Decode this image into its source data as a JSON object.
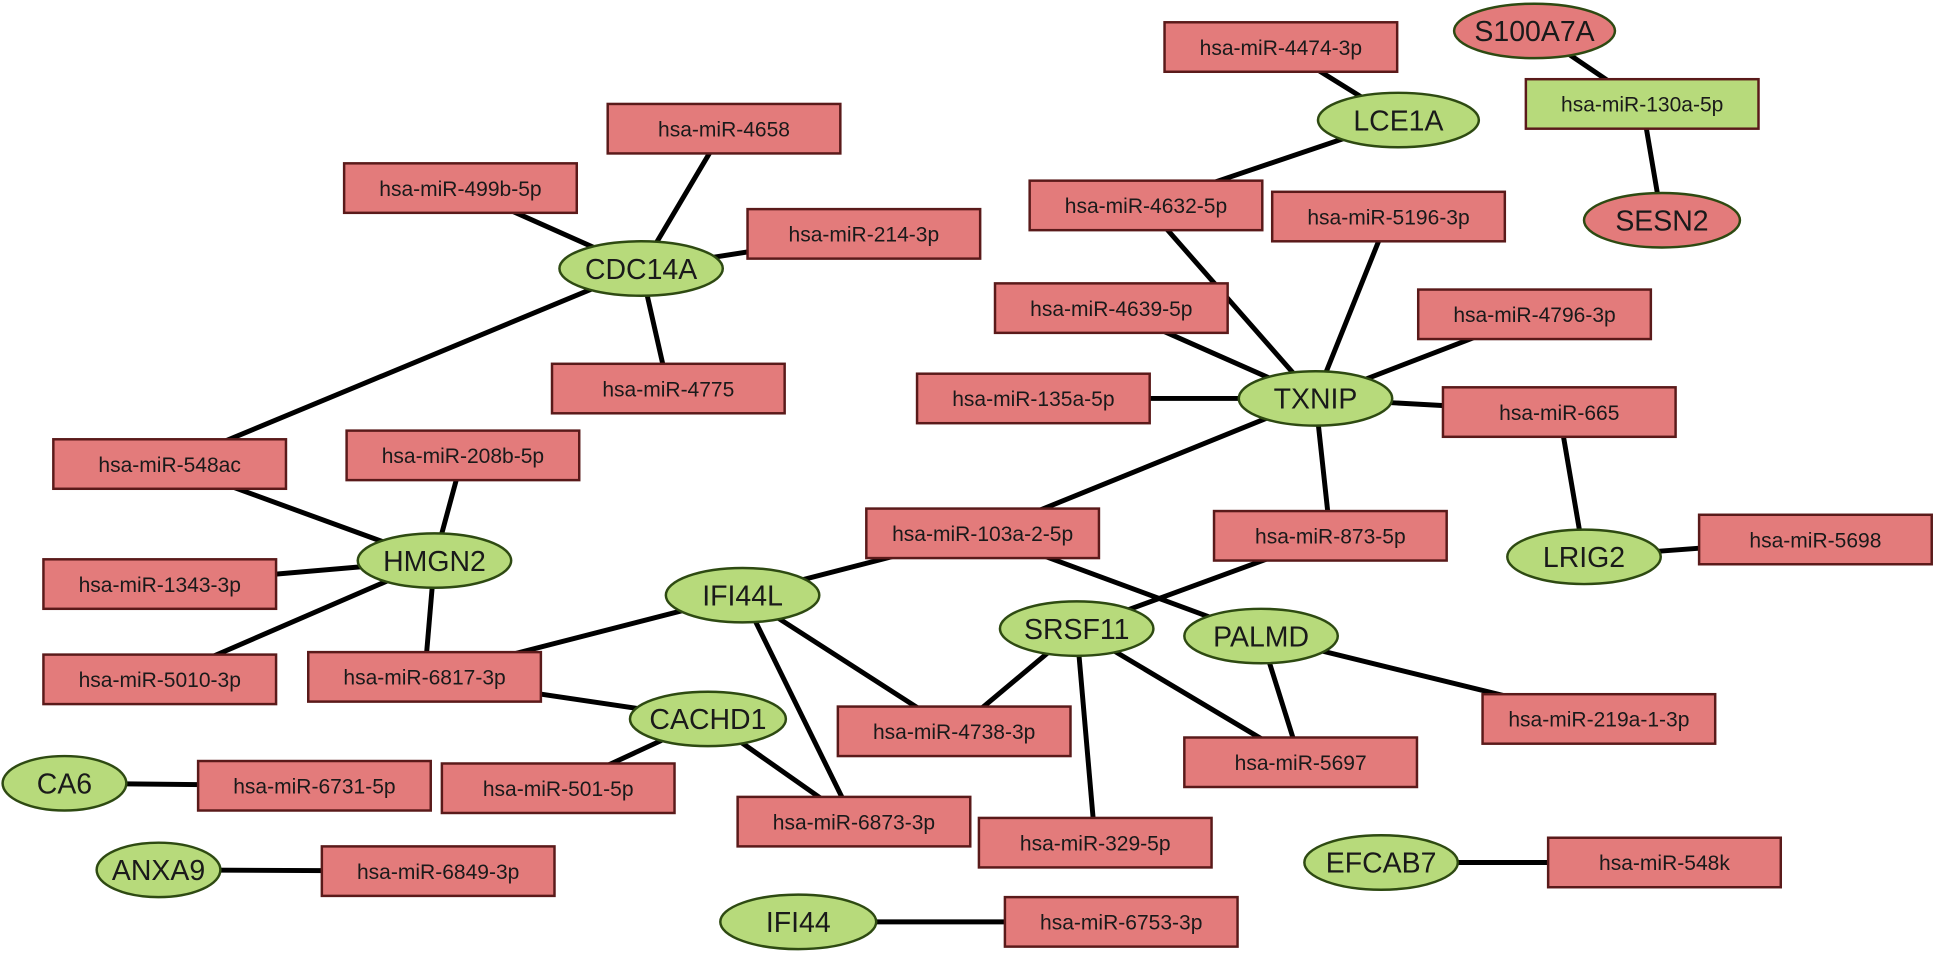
{
  "colors": {
    "mirna_fill": "#e37b7b",
    "gene_fill": "#b7da7b",
    "edge": "#000000"
  },
  "nodes": [
    {
      "id": "m4474",
      "label": "hsa-miR-4474-3p",
      "shape": "rect",
      "color": "red"
    },
    {
      "id": "S100A7A",
      "label": "S100A7A",
      "shape": "ellipse",
      "color": "red"
    },
    {
      "id": "m130a",
      "label": "hsa-miR-130a-5p",
      "shape": "rect",
      "color": "green"
    },
    {
      "id": "SESN2",
      "label": "SESN2",
      "shape": "ellipse",
      "color": "red"
    },
    {
      "id": "LCE1A",
      "label": "LCE1A",
      "shape": "ellipse",
      "color": "green"
    },
    {
      "id": "m4658",
      "label": "hsa-miR-4658",
      "shape": "rect",
      "color": "red"
    },
    {
      "id": "m499b",
      "label": "hsa-miR-499b-5p",
      "shape": "rect",
      "color": "red"
    },
    {
      "id": "m214",
      "label": "hsa-miR-214-3p",
      "shape": "rect",
      "color": "red"
    },
    {
      "id": "CDC14A",
      "label": "CDC14A",
      "shape": "ellipse",
      "color": "green"
    },
    {
      "id": "m4775",
      "label": "hsa-miR-4775",
      "shape": "rect",
      "color": "red"
    },
    {
      "id": "m4632",
      "label": "hsa-miR-4632-5p",
      "shape": "rect",
      "color": "red"
    },
    {
      "id": "m5196",
      "label": "hsa-miR-5196-3p",
      "shape": "rect",
      "color": "red"
    },
    {
      "id": "m4639",
      "label": "hsa-miR-4639-5p",
      "shape": "rect",
      "color": "red"
    },
    {
      "id": "m4796",
      "label": "hsa-miR-4796-3p",
      "shape": "rect",
      "color": "red"
    },
    {
      "id": "m135a",
      "label": "hsa-miR-135a-5p",
      "shape": "rect",
      "color": "red"
    },
    {
      "id": "TXNIP",
      "label": "TXNIP",
      "shape": "ellipse",
      "color": "green"
    },
    {
      "id": "m665",
      "label": "hsa-miR-665",
      "shape": "rect",
      "color": "red"
    },
    {
      "id": "m548ac",
      "label": "hsa-miR-548ac",
      "shape": "rect",
      "color": "red"
    },
    {
      "id": "m208b",
      "label": "hsa-miR-208b-5p",
      "shape": "rect",
      "color": "red"
    },
    {
      "id": "HMGN2",
      "label": "HMGN2",
      "shape": "ellipse",
      "color": "green"
    },
    {
      "id": "m1343",
      "label": "hsa-miR-1343-3p",
      "shape": "rect",
      "color": "red"
    },
    {
      "id": "m103a",
      "label": "hsa-miR-103a-2-5p",
      "shape": "rect",
      "color": "red"
    },
    {
      "id": "m873",
      "label": "hsa-miR-873-5p",
      "shape": "rect",
      "color": "red"
    },
    {
      "id": "LRIG2",
      "label": "LRIG2",
      "shape": "ellipse",
      "color": "green"
    },
    {
      "id": "m5698",
      "label": "hsa-miR-5698",
      "shape": "rect",
      "color": "red"
    },
    {
      "id": "IFI44L",
      "label": "IFI44L",
      "shape": "ellipse",
      "color": "green"
    },
    {
      "id": "SRSF11",
      "label": "SRSF11",
      "shape": "ellipse",
      "color": "green"
    },
    {
      "id": "PALMD",
      "label": "PALMD",
      "shape": "ellipse",
      "color": "green"
    },
    {
      "id": "m5010",
      "label": "hsa-miR-5010-3p",
      "shape": "rect",
      "color": "red"
    },
    {
      "id": "m6817",
      "label": "hsa-miR-6817-3p",
      "shape": "rect",
      "color": "red"
    },
    {
      "id": "CACHD1",
      "label": "CACHD1",
      "shape": "ellipse",
      "color": "green"
    },
    {
      "id": "m4738",
      "label": "hsa-miR-4738-3p",
      "shape": "rect",
      "color": "red"
    },
    {
      "id": "m219a",
      "label": "hsa-miR-219a-1-3p",
      "shape": "rect",
      "color": "red"
    },
    {
      "id": "m5697",
      "label": "hsa-miR-5697",
      "shape": "rect",
      "color": "red"
    },
    {
      "id": "CA6",
      "label": "CA6",
      "shape": "ellipse",
      "color": "green"
    },
    {
      "id": "m6731",
      "label": "hsa-miR-6731-5p",
      "shape": "rect",
      "color": "red"
    },
    {
      "id": "m501",
      "label": "hsa-miR-501-5p",
      "shape": "rect",
      "color": "red"
    },
    {
      "id": "m6873",
      "label": "hsa-miR-6873-3p",
      "shape": "rect",
      "color": "red"
    },
    {
      "id": "m329",
      "label": "hsa-miR-329-5p",
      "shape": "rect",
      "color": "red"
    },
    {
      "id": "EFCAB7",
      "label": "EFCAB7",
      "shape": "ellipse",
      "color": "green"
    },
    {
      "id": "m548k",
      "label": "hsa-miR-548k",
      "shape": "rect",
      "color": "red"
    },
    {
      "id": "ANXA9",
      "label": "ANXA9",
      "shape": "ellipse",
      "color": "green"
    },
    {
      "id": "m6849",
      "label": "hsa-miR-6849-3p",
      "shape": "rect",
      "color": "red"
    },
    {
      "id": "IFI44",
      "label": "IFI44",
      "shape": "ellipse",
      "color": "green"
    },
    {
      "id": "m6753",
      "label": "hsa-miR-6753-3p",
      "shape": "rect",
      "color": "red"
    }
  ],
  "edges": [
    [
      "m4474",
      "LCE1A"
    ],
    [
      "LCE1A",
      "m4632"
    ],
    [
      "S100A7A",
      "m130a"
    ],
    [
      "m130a",
      "SESN2"
    ],
    [
      "m4658",
      "CDC14A"
    ],
    [
      "m499b",
      "CDC14A"
    ],
    [
      "m214",
      "CDC14A"
    ],
    [
      "CDC14A",
      "m4775"
    ],
    [
      "CDC14A",
      "m548ac"
    ],
    [
      "m4632",
      "TXNIP"
    ],
    [
      "m5196",
      "TXNIP"
    ],
    [
      "m4639",
      "TXNIP"
    ],
    [
      "m4796",
      "TXNIP"
    ],
    [
      "m135a",
      "TXNIP"
    ],
    [
      "TXNIP",
      "m665"
    ],
    [
      "TXNIP",
      "m103a"
    ],
    [
      "TXNIP",
      "m873"
    ],
    [
      "m665",
      "LRIG2"
    ],
    [
      "LRIG2",
      "m5698"
    ],
    [
      "m548ac",
      "HMGN2"
    ],
    [
      "m208b",
      "HMGN2"
    ],
    [
      "m1343",
      "HMGN2"
    ],
    [
      "m5010",
      "HMGN2"
    ],
    [
      "HMGN2",
      "m6817"
    ],
    [
      "m103a",
      "IFI44L"
    ],
    [
      "m103a",
      "PALMD"
    ],
    [
      "m873",
      "SRSF11"
    ],
    [
      "IFI44L",
      "m6817"
    ],
    [
      "IFI44L",
      "m4738"
    ],
    [
      "IFI44L",
      "m6873"
    ],
    [
      "m6817",
      "CACHD1"
    ],
    [
      "CACHD1",
      "m501"
    ],
    [
      "CACHD1",
      "m6873"
    ],
    [
      "SRSF11",
      "m4738"
    ],
    [
      "SRSF11",
      "m329"
    ],
    [
      "SRSF11",
      "m5697"
    ],
    [
      "PALMD",
      "m5697"
    ],
    [
      "PALMD",
      "m219a"
    ],
    [
      "CA6",
      "m6731"
    ],
    [
      "ANXA9",
      "m6849"
    ],
    [
      "IFI44",
      "m6753"
    ],
    [
      "EFCAB7",
      "m548k"
    ]
  ]
}
